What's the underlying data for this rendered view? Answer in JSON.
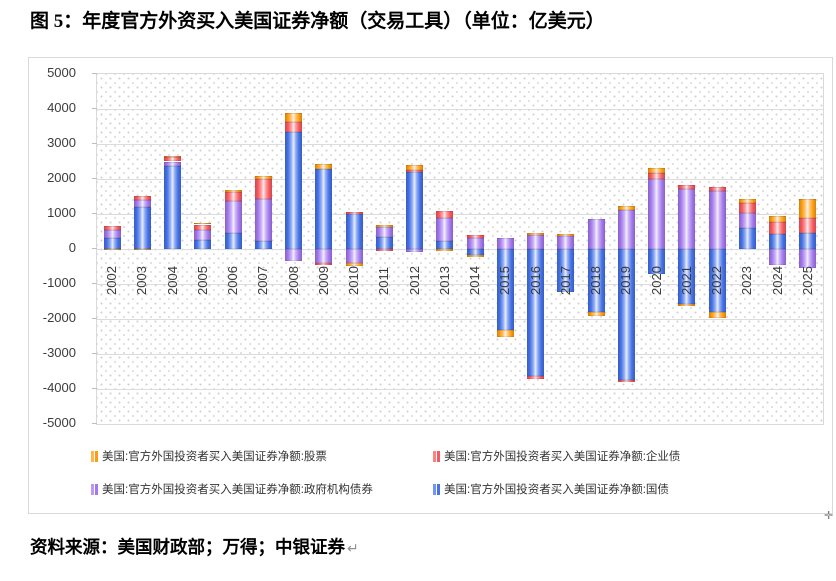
{
  "title": "图 5：年度官方外资买入美国证券净额（交易工具）（单位：亿美元）",
  "source_line": "资料来源：美国财政部；万得；中银证券",
  "return_mark": "↵",
  "anchor_icon": "✛",
  "chart_data": {
    "type": "bar",
    "stacked": true,
    "unit": "亿美元",
    "grid": true,
    "legend_position": "bottom",
    "ylim": [
      -5000,
      5000
    ],
    "ytick_step": 1000,
    "categories": [
      "2002",
      "2003",
      "2004",
      "2005",
      "2006",
      "2007",
      "2008",
      "2009",
      "2010",
      "2011",
      "2012",
      "2013",
      "2014",
      "2015",
      "2016",
      "2017",
      "2018",
      "2019",
      "2020",
      "2021",
      "2022",
      "2023",
      "2024",
      "2025"
    ],
    "series": [
      {
        "name": "美国:官方外国投资者买入美国证券净额:股票",
        "color": "#ff9d12",
        "values": [
          -40,
          -40,
          30,
          30,
          50,
          90,
          270,
          140,
          -75,
          75,
          130,
          -60,
          -55,
          -210,
          65,
          65,
          -115,
          125,
          145,
          -65,
          -160,
          125,
          160,
          545
        ]
      },
      {
        "name": "美国:官方外国投资者买入美国证券净额:企业债",
        "color": "#f8595f",
        "values": [
          120,
          95,
          130,
          160,
          250,
          570,
          290,
          -60,
          50,
          -50,
          60,
          190,
          65,
          0,
          -75,
          0,
          0,
          -75,
          190,
          105,
          125,
          275,
          335,
          440
        ]
      },
      {
        "name": "美国:官方外国投资者买入美国证券净额:政府机构债券",
        "color": "#a478ee",
        "values": [
          230,
          210,
          140,
          270,
          930,
          1210,
          -340,
          -400,
          -400,
          280,
          -85,
          670,
          325,
          315,
          390,
          360,
          865,
          1105,
          1990,
          1725,
          1650,
          430,
          -450,
          -545
        ]
      },
      {
        "name": "美国:官方外国投资者买入美国证券净额:国债",
        "color": "#4472e8",
        "values": [
          320,
          1200,
          2360,
          270,
          450,
          230,
          3340,
          2280,
          1010,
          340,
          2210,
          220,
          -180,
          -2300,
          -3630,
          -1230,
          -1800,
          -3730,
          -705,
          -1560,
          -1800,
          610,
          440,
          455
        ]
      }
    ]
  }
}
